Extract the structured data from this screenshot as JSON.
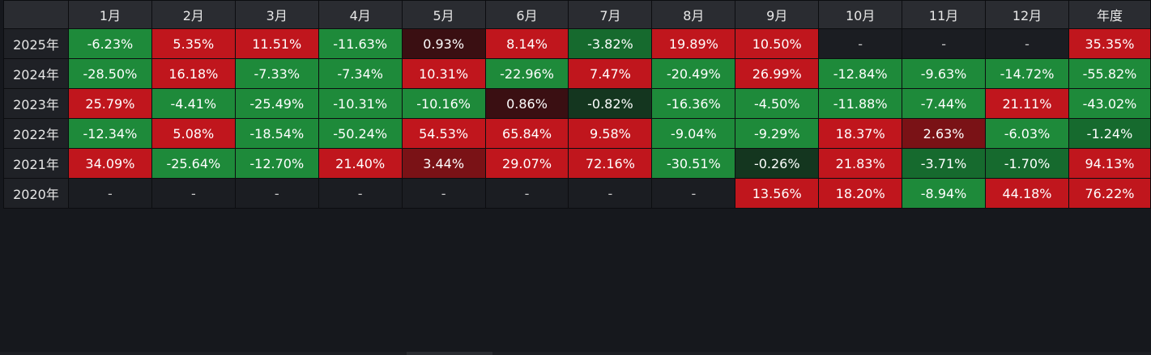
{
  "colors": {
    "strong_red": "#c0161d",
    "mid_red": "#7a1216",
    "dark_red": "#3a0f12",
    "strong_green": "#1e8a3a",
    "mid_green": "#166a2e",
    "dark_green": "#14361f",
    "empty": "#1b1d22"
  },
  "table": {
    "corner": "",
    "headers": [
      "1月",
      "2月",
      "3月",
      "4月",
      "5月",
      "6月",
      "7月",
      "8月",
      "9月",
      "10月",
      "11月",
      "12月",
      "年度"
    ],
    "rows": [
      {
        "year": "2025年",
        "cells": [
          {
            "text": "-6.23%",
            "v": -6.23
          },
          {
            "text": "5.35%",
            "v": 5.35
          },
          {
            "text": "11.51%",
            "v": 11.51
          },
          {
            "text": "-11.63%",
            "v": -11.63
          },
          {
            "text": "0.93%",
            "v": 0.93
          },
          {
            "text": "8.14%",
            "v": 8.14
          },
          {
            "text": "-3.82%",
            "v": -3.82
          },
          {
            "text": "19.89%",
            "v": 19.89
          },
          {
            "text": "10.50%",
            "v": 10.5
          },
          {
            "text": "-",
            "v": null
          },
          {
            "text": "-",
            "v": null
          },
          {
            "text": "-",
            "v": null
          },
          {
            "text": "35.35%",
            "v": 35.35
          }
        ]
      },
      {
        "year": "2024年",
        "cells": [
          {
            "text": "-28.50%",
            "v": -28.5
          },
          {
            "text": "16.18%",
            "v": 16.18
          },
          {
            "text": "-7.33%",
            "v": -7.33
          },
          {
            "text": "-7.34%",
            "v": -7.34
          },
          {
            "text": "10.31%",
            "v": 10.31
          },
          {
            "text": "-22.96%",
            "v": -22.96
          },
          {
            "text": "7.47%",
            "v": 7.47
          },
          {
            "text": "-20.49%",
            "v": -20.49
          },
          {
            "text": "26.99%",
            "v": 26.99
          },
          {
            "text": "-12.84%",
            "v": -12.84
          },
          {
            "text": "-9.63%",
            "v": -9.63
          },
          {
            "text": "-14.72%",
            "v": -14.72
          },
          {
            "text": "-55.82%",
            "v": -55.82
          }
        ]
      },
      {
        "year": "2023年",
        "cells": [
          {
            "text": "25.79%",
            "v": 25.79
          },
          {
            "text": "-4.41%",
            "v": -4.41
          },
          {
            "text": "-25.49%",
            "v": -25.49
          },
          {
            "text": "-10.31%",
            "v": -10.31
          },
          {
            "text": "-10.16%",
            "v": -10.16
          },
          {
            "text": "0.86%",
            "v": 0.86
          },
          {
            "text": "-0.82%",
            "v": -0.82
          },
          {
            "text": "-16.36%",
            "v": -16.36
          },
          {
            "text": "-4.50%",
            "v": -4.5
          },
          {
            "text": "-11.88%",
            "v": -11.88
          },
          {
            "text": "-7.44%",
            "v": -7.44
          },
          {
            "text": "21.11%",
            "v": 21.11
          },
          {
            "text": "-43.02%",
            "v": -43.02
          }
        ]
      },
      {
        "year": "2022年",
        "cells": [
          {
            "text": "-12.34%",
            "v": -12.34
          },
          {
            "text": "5.08%",
            "v": 5.08
          },
          {
            "text": "-18.54%",
            "v": -18.54
          },
          {
            "text": "-50.24%",
            "v": -50.24
          },
          {
            "text": "54.53%",
            "v": 54.53
          },
          {
            "text": "65.84%",
            "v": 65.84
          },
          {
            "text": "9.58%",
            "v": 9.58
          },
          {
            "text": "-9.04%",
            "v": -9.04
          },
          {
            "text": "-9.29%",
            "v": -9.29
          },
          {
            "text": "18.37%",
            "v": 18.37
          },
          {
            "text": "2.63%",
            "v": 2.63
          },
          {
            "text": "-6.03%",
            "v": -6.03
          },
          {
            "text": "-1.24%",
            "v": -1.24
          }
        ]
      },
      {
        "year": "2021年",
        "cells": [
          {
            "text": "34.09%",
            "v": 34.09
          },
          {
            "text": "-25.64%",
            "v": -25.64
          },
          {
            "text": "-12.70%",
            "v": -12.7
          },
          {
            "text": "21.40%",
            "v": 21.4
          },
          {
            "text": "3.44%",
            "v": 3.44
          },
          {
            "text": "29.07%",
            "v": 29.07
          },
          {
            "text": "72.16%",
            "v": 72.16
          },
          {
            "text": "-30.51%",
            "v": -30.51
          },
          {
            "text": "-0.26%",
            "v": -0.26
          },
          {
            "text": "21.83%",
            "v": 21.83
          },
          {
            "text": "-3.71%",
            "v": -3.71
          },
          {
            "text": "-1.70%",
            "v": -1.7
          },
          {
            "text": "94.13%",
            "v": 94.13
          }
        ]
      },
      {
        "year": "2020年",
        "cells": [
          {
            "text": "-",
            "v": null
          },
          {
            "text": "-",
            "v": null
          },
          {
            "text": "-",
            "v": null
          },
          {
            "text": "-",
            "v": null
          },
          {
            "text": "-",
            "v": null
          },
          {
            "text": "-",
            "v": null
          },
          {
            "text": "-",
            "v": null
          },
          {
            "text": "-",
            "v": null
          },
          {
            "text": "13.56%",
            "v": 13.56
          },
          {
            "text": "18.20%",
            "v": 18.2
          },
          {
            "text": "-8.94%",
            "v": -8.94
          },
          {
            "text": "44.18%",
            "v": 44.18
          },
          {
            "text": "76.22%",
            "v": 76.22
          }
        ]
      }
    ]
  }
}
